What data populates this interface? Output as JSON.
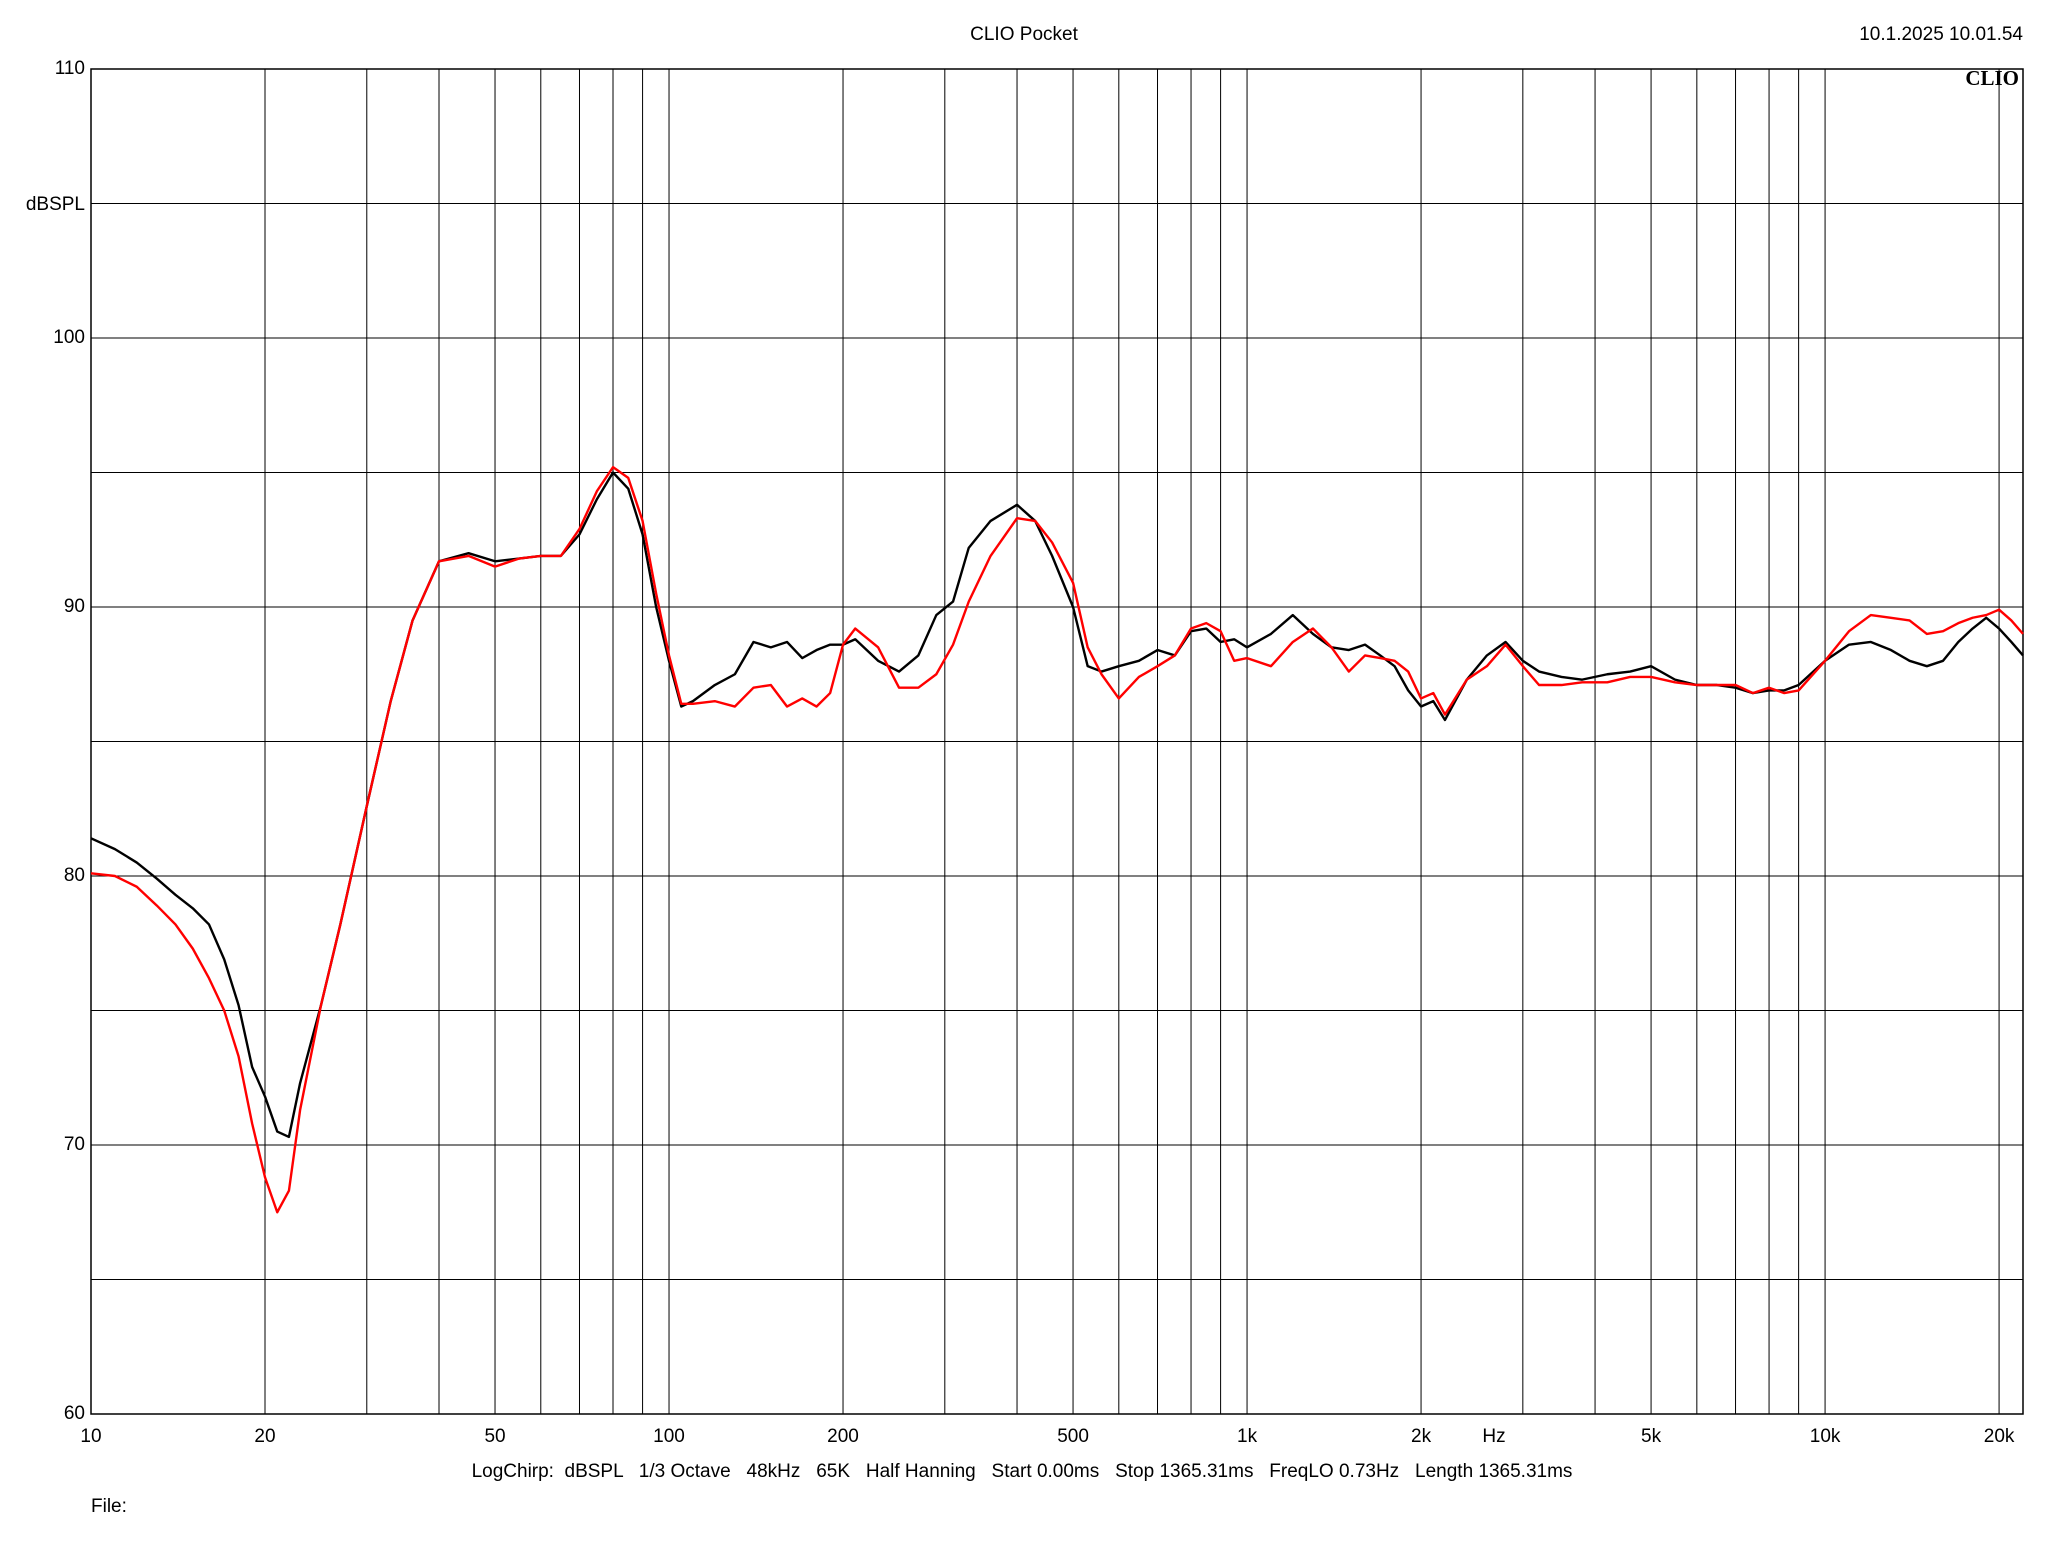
{
  "chart_data": {
    "type": "line",
    "title": "CLIO Pocket",
    "timestamp": "10.1.2025 10.01.54",
    "logo": "CLIO",
    "y_label": "dBSPL",
    "x_label": "Hz",
    "settings_line": "LogChirp:  dBSPL   1/3 Octave   48kHz   65K   Half Hanning   Start 0.00ms   Stop 1365.31ms   FreqLO 0.73Hz   Length 1365.31ms",
    "file_label": "File:",
    "x_scale": "log",
    "grid": true,
    "xlim": [
      10,
      22000
    ],
    "ylim": [
      60,
      110
    ],
    "xticks": [
      10,
      20,
      50,
      100,
      200,
      500,
      {
        "value": 1000,
        "label": "1k"
      },
      {
        "value": 2000,
        "label": "2k"
      },
      {
        "value": 5000,
        "label": "5k"
      },
      {
        "value": 10000,
        "label": "10k"
      },
      {
        "value": 20000,
        "label": "20k"
      }
    ],
    "x_minor_grid": [
      30,
      40,
      60,
      70,
      80,
      90,
      300,
      400,
      600,
      700,
      800,
      900,
      3000,
      4000,
      6000,
      7000,
      8000,
      9000
    ],
    "yticks": [
      60,
      70,
      80,
      90,
      100,
      110
    ],
    "y_minor_grid": [
      65,
      75,
      85,
      95,
      105
    ],
    "x": [
      10,
      11,
      12,
      13,
      14,
      15,
      16,
      17,
      18,
      19,
      20,
      21,
      22,
      23,
      25,
      27,
      30,
      33,
      36,
      40,
      45,
      50,
      55,
      60,
      65,
      70,
      75,
      80,
      85,
      90,
      95,
      100,
      105,
      110,
      120,
      130,
      140,
      150,
      160,
      170,
      180,
      190,
      200,
      210,
      230,
      250,
      270,
      290,
      310,
      330,
      360,
      400,
      430,
      460,
      500,
      530,
      560,
      600,
      650,
      700,
      750,
      800,
      850,
      900,
      950,
      1000,
      1100,
      1200,
      1300,
      1400,
      1500,
      1600,
      1700,
      1800,
      1900,
      2000,
      2100,
      2200,
      2400,
      2600,
      2800,
      3000,
      3200,
      3500,
      3800,
      4200,
      4600,
      5000,
      5500,
      6000,
      6500,
      7000,
      7500,
      8000,
      8500,
      9000,
      10000,
      11000,
      12000,
      13000,
      14000,
      15000,
      16000,
      17000,
      18000,
      19000,
      20000,
      21000,
      22000
    ],
    "series": [
      {
        "color": "#000000",
        "values": [
          81.4,
          81.0,
          80.5,
          79.9,
          79.3,
          78.8,
          78.2,
          76.9,
          75.2,
          72.9,
          71.8,
          70.5,
          70.3,
          72.3,
          75.2,
          78.2,
          82.6,
          86.5,
          89.5,
          91.7,
          92.0,
          91.7,
          91.8,
          91.9,
          91.9,
          92.7,
          94.0,
          95.0,
          94.4,
          92.7,
          90.0,
          88.0,
          86.3,
          86.5,
          87.1,
          87.5,
          88.7,
          88.5,
          88.7,
          88.1,
          88.4,
          88.6,
          88.6,
          88.8,
          88.0,
          87.6,
          88.2,
          89.7,
          90.2,
          92.2,
          93.2,
          93.8,
          93.2,
          91.9,
          90.0,
          87.8,
          87.6,
          87.8,
          88.0,
          88.4,
          88.2,
          89.1,
          89.2,
          88.7,
          88.8,
          88.5,
          89.0,
          89.7,
          89.0,
          88.5,
          88.4,
          88.6,
          88.2,
          87.8,
          86.9,
          86.3,
          86.5,
          85.8,
          87.3,
          88.2,
          88.7,
          88.0,
          87.6,
          87.4,
          87.3,
          87.5,
          87.6,
          87.8,
          87.3,
          87.1,
          87.1,
          87.0,
          86.8,
          86.9,
          86.9,
          87.1,
          88.0,
          88.6,
          88.7,
          88.4,
          88.0,
          87.8,
          88.0,
          88.7,
          89.2,
          89.6,
          89.2,
          88.7,
          88.2
        ]
      },
      {
        "color": "#ff0000",
        "values": [
          80.1,
          80.0,
          79.6,
          78.9,
          78.2,
          77.3,
          76.2,
          75.0,
          73.3,
          70.8,
          68.8,
          67.5,
          68.3,
          71.3,
          75.2,
          78.2,
          82.6,
          86.5,
          89.5,
          91.7,
          91.9,
          91.5,
          91.8,
          91.9,
          91.9,
          92.9,
          94.3,
          95.2,
          94.8,
          93.2,
          90.5,
          88.2,
          86.4,
          86.4,
          86.5,
          86.3,
          87.0,
          87.1,
          86.3,
          86.6,
          86.3,
          86.8,
          88.6,
          89.2,
          88.5,
          87.0,
          87.0,
          87.5,
          88.6,
          90.2,
          91.9,
          93.3,
          93.2,
          92.4,
          90.9,
          88.5,
          87.5,
          86.6,
          87.4,
          87.8,
          88.2,
          89.2,
          89.4,
          89.1,
          88.0,
          88.1,
          87.8,
          88.7,
          89.2,
          88.5,
          87.6,
          88.2,
          88.1,
          88.0,
          87.6,
          86.6,
          86.8,
          86.0,
          87.3,
          87.8,
          88.6,
          87.8,
          87.1,
          87.1,
          87.2,
          87.2,
          87.4,
          87.4,
          87.2,
          87.1,
          87.1,
          87.1,
          86.8,
          87.0,
          86.8,
          86.9,
          88.0,
          89.1,
          89.7,
          89.6,
          89.5,
          89.0,
          89.1,
          89.4,
          89.6,
          89.7,
          89.9,
          89.5,
          89.0
        ]
      }
    ]
  }
}
